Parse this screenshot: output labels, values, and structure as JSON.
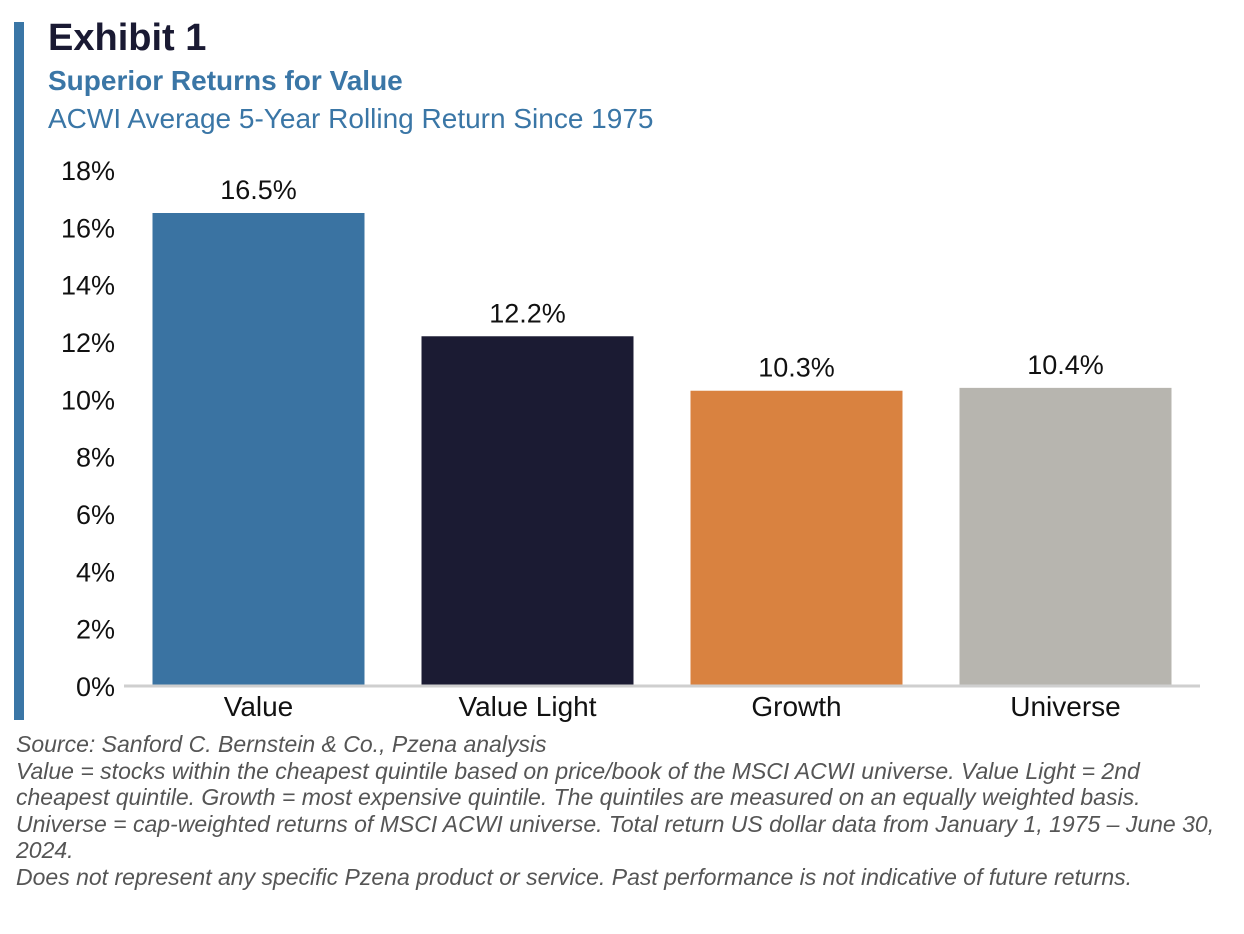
{
  "header": {
    "exhibit": "Exhibit 1",
    "title": "Superior Returns for Value",
    "subtitle": "ACWI Average 5-Year Rolling Return Since 1975"
  },
  "chart_data": {
    "type": "bar",
    "categories": [
      "Value",
      "Value Light",
      "Growth",
      "Universe"
    ],
    "values": [
      16.5,
      12.2,
      10.3,
      10.4
    ],
    "value_labels": [
      "16.5%",
      "12.2%",
      "10.3%",
      "10.4%"
    ],
    "bar_colors": [
      "#3a73a2",
      "#1b1b33",
      "#d98240",
      "#b7b5af"
    ],
    "ylim": [
      0,
      18
    ],
    "yticks": [
      0,
      2,
      4,
      6,
      8,
      10,
      12,
      14,
      16,
      18
    ],
    "ytick_labels": [
      "0%",
      "2%",
      "4%",
      "6%",
      "8%",
      "10%",
      "12%",
      "14%",
      "16%",
      "18%"
    ],
    "grid": false,
    "legend": "none"
  },
  "footnotes": [
    "Source: Sanford C. Bernstein & Co., Pzena analysis",
    "Value = stocks within the cheapest quintile based on price/book of the MSCI ACWI universe. Value Light = 2nd cheapest quintile. Growth = most expensive quintile. The quintiles are measured on an equally weighted basis. Universe = cap-weighted returns of MSCI ACWI universe. Total return US dollar data from January 1, 1975 – June 30, 2024.",
    "Does not represent any specific Pzena product or service. Past performance is not indicative of future returns."
  ]
}
